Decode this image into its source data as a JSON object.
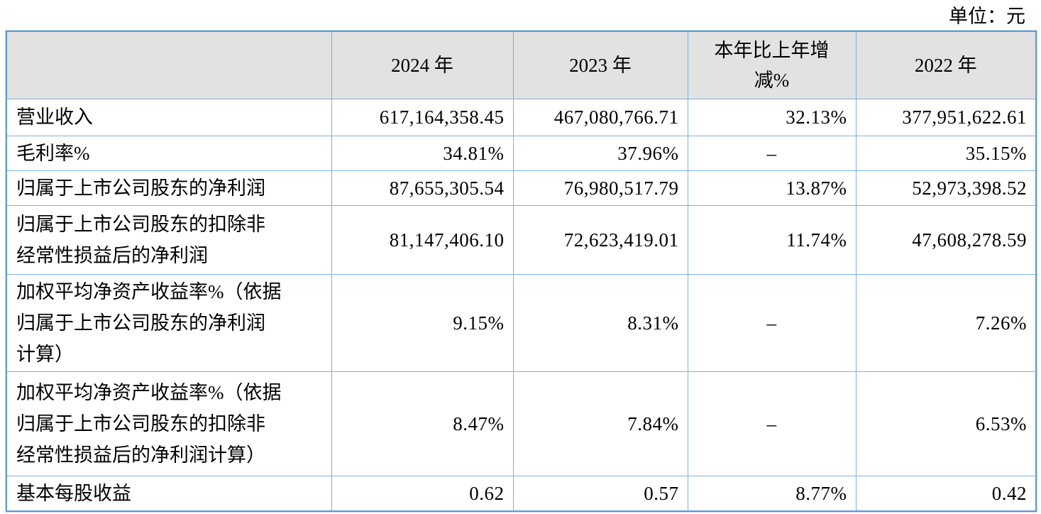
{
  "unit_label": "单位：元",
  "colors": {
    "grid_border": "#7fb0e0",
    "outer_border": "#5d9ad3",
    "header_bg": "#e2e2e2",
    "text_color": "#000000"
  },
  "table": {
    "columns": [
      "",
      "2024 年",
      "2023 年",
      "本年比上年增\n减%",
      "2022 年"
    ],
    "rows": [
      {
        "label": "营业收入",
        "y2024": "617,164,358.45",
        "y2023": "467,080,766.71",
        "change": "32.13%",
        "y2022": "377,951,622.61"
      },
      {
        "label": "毛利率%",
        "y2024": "34.81%",
        "y2023": "37.96%",
        "change": "–",
        "y2022": "35.15%"
      },
      {
        "label": "归属于上市公司股东的净利润",
        "y2024": "87,655,305.54",
        "y2023": "76,980,517.79",
        "change": "13.87%",
        "y2022": "52,973,398.52"
      },
      {
        "label": "归属于上市公司股东的扣除非\n经常性损益后的净利润",
        "y2024": "81,147,406.10",
        "y2023": "72,623,419.01",
        "change": "11.74%",
        "y2022": "47,608,278.59"
      },
      {
        "label": "加权平均净资产收益率%（依据\n归属于上市公司股东的净利润\n计算）",
        "y2024": "9.15%",
        "y2023": "8.31%",
        "change": "–",
        "y2022": "7.26%"
      },
      {
        "label": "加权平均净资产收益率%（依据\n归属于上市公司股东的扣除非\n经常性损益后的净利润计算）",
        "y2024": "8.47%",
        "y2023": "7.84%",
        "change": "–",
        "y2022": "6.53%"
      },
      {
        "label": "基本每股收益",
        "y2024": "0.62",
        "y2023": "0.57",
        "change": "8.77%",
        "y2022": "0.42"
      }
    ]
  }
}
